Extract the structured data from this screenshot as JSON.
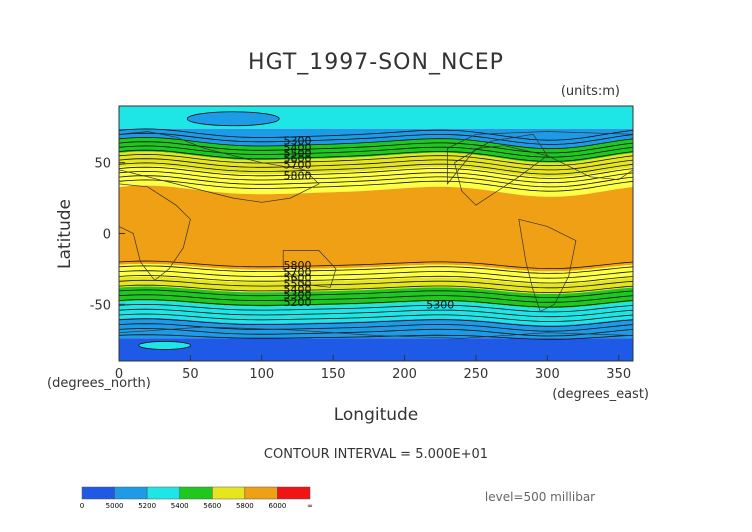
{
  "chart_data": {
    "type": "heatmap",
    "title": "HGT_1997-SON_NCEP",
    "units": "(units:m)",
    "xlabel": "Longitude",
    "ylabel": "Latitude",
    "x_unit": "(degrees_east)",
    "y_unit": "(degrees_north)",
    "xlim": [
      0,
      360
    ],
    "ylim": [
      -90,
      90
    ],
    "x_ticks": [
      0,
      50,
      100,
      150,
      200,
      250,
      300,
      350
    ],
    "y_ticks": [
      50,
      0,
      -50
    ],
    "contour_interval_text": "CONTOUR INTERVAL = 5.000E+01",
    "level_text": "level=500 millibar",
    "colorbar": {
      "labels": [
        "0",
        "5000",
        "5200",
        "5400",
        "5600",
        "5800",
        "6000",
        "∞"
      ],
      "colors": [
        "#1e5ae6",
        "#1e9be6",
        "#1ee6e6",
        "#1ec81e",
        "#e6e61e",
        "#f0a014",
        "#f01414"
      ]
    },
    "contour_labels": [
      "5300",
      "5400",
      "5500",
      "5600",
      "5700",
      "5800",
      "5800",
      "5700",
      "5600",
      "5500",
      "5400",
      "5300",
      "5200",
      "5300"
    ],
    "bands": [
      {
        "lat_from": 90,
        "lat_to": 74,
        "color": "#1ee6e6"
      },
      {
        "lat_from": 74,
        "lat_to": 64,
        "color": "#1e9be6"
      },
      {
        "lat_from": 64,
        "lat_to": 54,
        "color": "#1ec81e"
      },
      {
        "lat_from": 54,
        "lat_to": 44,
        "color": "#e6e61e"
      },
      {
        "lat_from": 44,
        "lat_to": 30,
        "color": "#ffff44"
      },
      {
        "lat_from": 30,
        "lat_to": -24,
        "color": "#f0a014"
      },
      {
        "lat_from": -24,
        "lat_to": -33,
        "color": "#ffff44"
      },
      {
        "lat_from": -33,
        "lat_to": -40,
        "color": "#e6e61e"
      },
      {
        "lat_from": -40,
        "lat_to": -50,
        "color": "#1ec81e"
      },
      {
        "lat_from": -50,
        "lat_to": -62,
        "color": "#1ee6e6"
      },
      {
        "lat_from": -62,
        "lat_to": -74,
        "color": "#1e9be6"
      },
      {
        "lat_from": -74,
        "lat_to": -90,
        "color": "#1e5ae6"
      }
    ]
  }
}
